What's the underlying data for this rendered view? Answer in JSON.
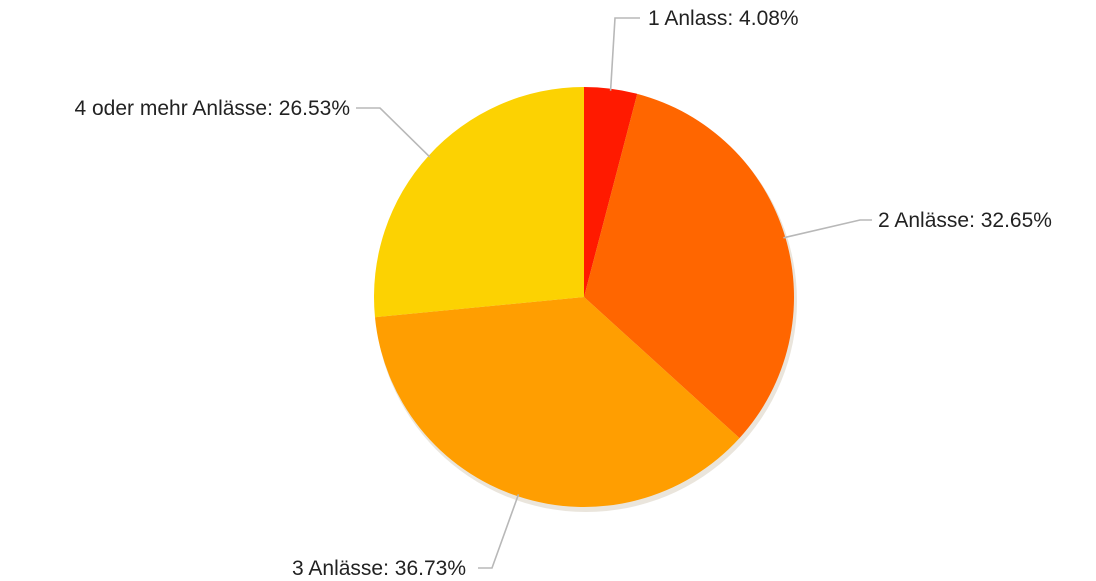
{
  "chart_data": {
    "type": "pie",
    "title": "",
    "slices": [
      {
        "label": "1 Anlass",
        "value": 4.08,
        "value_text": "4.08%",
        "color": "#ff1a00"
      },
      {
        "label": "2 Anlässe",
        "value": 32.65,
        "value_text": "32.65%",
        "color": "#ff6600"
      },
      {
        "label": "3 Anlässe",
        "value": 36.73,
        "value_text": "36.73%",
        "color": "#ff9e01"
      },
      {
        "label": "4 oder mehr Anlässe",
        "value": 26.53,
        "value_text": "26.53%",
        "color": "#fcd202"
      }
    ],
    "start_angle": "12 o'clock",
    "direction": "clockwise",
    "label_style": "outside with leader lines",
    "legend": "none"
  }
}
